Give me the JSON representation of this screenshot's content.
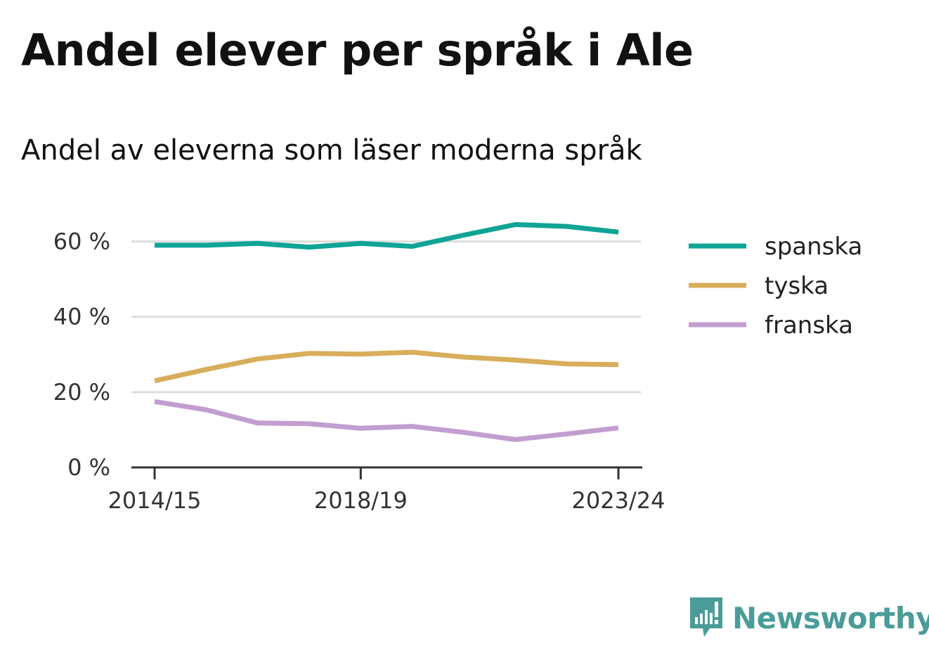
{
  "title": "Andel elever per språk i Ale",
  "subtitle": "Andel av eleverna som läser moderna språk",
  "brand": {
    "name": "Newsworthy",
    "color": "#4a9c98",
    "icon": "newsworthy-logo-icon"
  },
  "chart_data": {
    "type": "line",
    "x": [
      "2014/15",
      "2015/16",
      "2016/17",
      "2017/18",
      "2018/19",
      "2019/20",
      "2020/21",
      "2021/22",
      "2022/23",
      "2023/24"
    ],
    "x_tick_labels": [
      "2014/15",
      "2018/19",
      "2023/24"
    ],
    "y_ticks": [
      0,
      20,
      40,
      60
    ],
    "y_tick_labels": [
      "0 %",
      "20 %",
      "40 %",
      "60 %"
    ],
    "ylim": [
      0,
      70
    ],
    "grid": true,
    "legend_position": "right",
    "series": [
      {
        "name": "spanska",
        "color": "#0fa496",
        "values": [
          59,
          59,
          59.5,
          58.5,
          59.5,
          58.7,
          61.7,
          64.5,
          64,
          62.5
        ]
      },
      {
        "name": "tyska",
        "color": "#d8ae5b",
        "values": [
          23,
          26,
          28.8,
          30.3,
          30.1,
          30.6,
          29.3,
          28.5,
          27.5,
          27.3
        ]
      },
      {
        "name": "franska",
        "color": "#c29ed0",
        "values": [
          17.5,
          15.3,
          11.8,
          11.6,
          10.4,
          10.9,
          9.3,
          7.4,
          8.9,
          10.5
        ]
      }
    ]
  }
}
